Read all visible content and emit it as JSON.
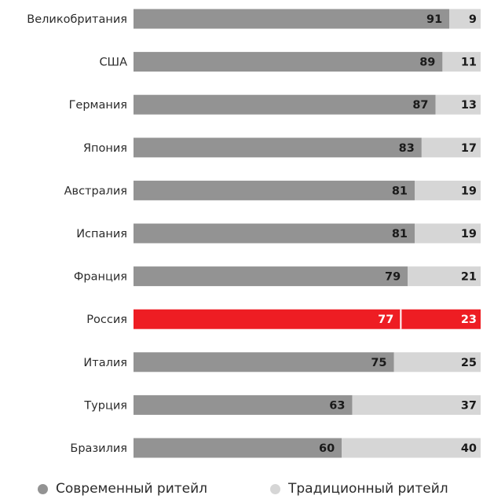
{
  "chart_data": {
    "type": "bar",
    "stacked": true,
    "orientation": "horizontal",
    "categories": [
      "Великобритания",
      "США",
      "Германия",
      "Япония",
      "Австралия",
      "Испания",
      "Франция",
      "Россия",
      "Италия",
      "Турция",
      "Бразилия"
    ],
    "series": [
      {
        "name": "Современный ритейл",
        "values": [
          91,
          89,
          87,
          83,
          81,
          81,
          79,
          77,
          75,
          63,
          60
        ]
      },
      {
        "name": "Традиционный ритейл",
        "values": [
          9,
          11,
          13,
          17,
          19,
          19,
          21,
          23,
          25,
          37,
          40
        ]
      }
    ],
    "xlim": [
      0,
      100
    ],
    "highlight_category": "Россия",
    "legend_position": "bottom",
    "grid": false
  },
  "colors": {
    "modern": "#939393",
    "traditional": "#d6d6d6",
    "highlight": "#ee1d23",
    "text": "#2b2b2b",
    "value_text_dark": "#1a1a1a",
    "value_text_light": "#ffffff",
    "legend_modern_dot": "#939393",
    "legend_traditional_dot": "#d6d6d6"
  },
  "legend": {
    "modern_label": "Современный ритейл",
    "traditional_label": "Традиционный ритейл"
  }
}
